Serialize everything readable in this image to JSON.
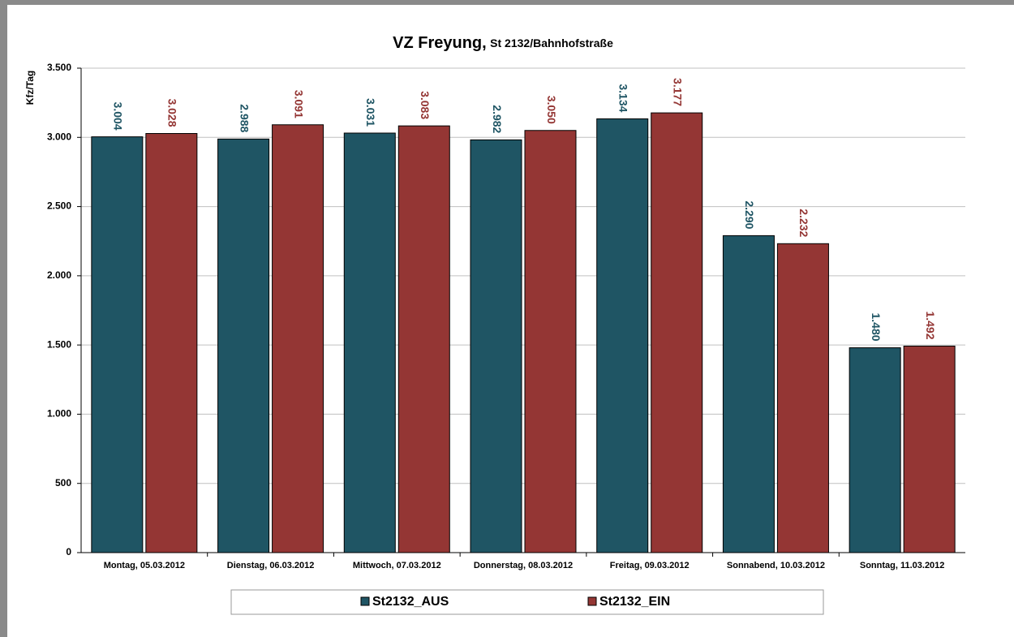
{
  "chart_data": {
    "type": "bar",
    "title": "VZ Freyung,",
    "subtitle": "St 2132/Bahnhofstraße",
    "y_label": "Kfz/Tag",
    "categories": [
      "Montag, 05.03.2012",
      "Dienstag, 06.03.2012",
      "Mittwoch, 07.03.2012",
      "Donnerstag, 08.03.2012",
      "Freitag, 09.03.2012",
      "Sonnabend, 10.03.2012",
      "Sonntag, 11.03.2012"
    ],
    "series": [
      {
        "name": "St2132_AUS",
        "color": "#1f5564",
        "values": [
          3004,
          2988,
          3031,
          2982,
          3134,
          2290,
          1480
        ],
        "value_labels": [
          "3.004",
          "2.988",
          "3.031",
          "2.982",
          "3.134",
          "2.290",
          "1.480"
        ]
      },
      {
        "name": "St2132_EIN",
        "color": "#943634",
        "values": [
          3028,
          3091,
          3083,
          3050,
          3177,
          2232,
          1492
        ],
        "value_labels": [
          "3.028",
          "3.091",
          "3.083",
          "3.050",
          "3.177",
          "2.232",
          "1.492"
        ]
      }
    ],
    "ylim": [
      0,
      3500
    ],
    "yticks": [
      0,
      500,
      {
        "value": 1000,
        "label": "1.000"
      },
      {
        "value": 1500,
        "label": "1.500"
      },
      {
        "value": 2000,
        "label": "2.000"
      },
      {
        "value": 2500,
        "label": "2.500"
      },
      {
        "value": 3000,
        "label": "3.000"
      },
      {
        "value": 3500,
        "label": "3.500"
      }
    ],
    "grid": true,
    "legend": "bottom"
  }
}
